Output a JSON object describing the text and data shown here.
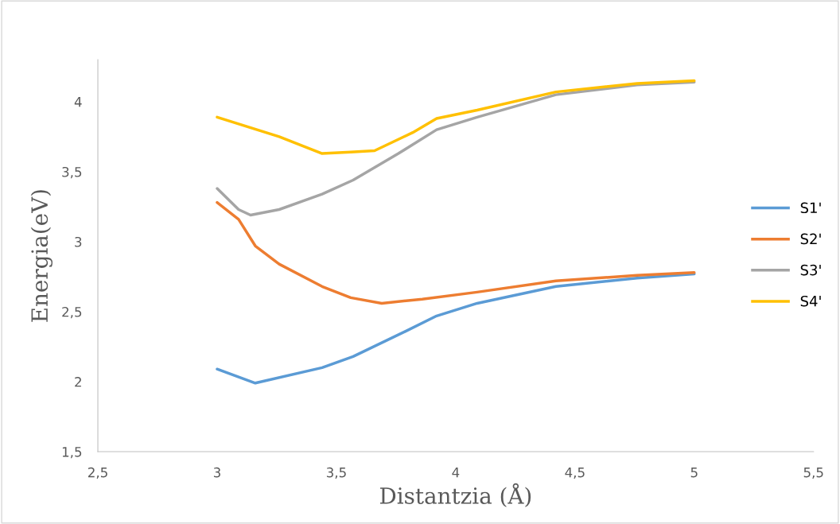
{
  "chart_data": {
    "type": "line",
    "xlabel": "Distantzia (Å)",
    "ylabel": "Energia(eV)",
    "xlim": [
      2.5,
      5.5
    ],
    "ylim": [
      1.5,
      4.3
    ],
    "xticks": [
      {
        "value": 2.5,
        "label": "2,5"
      },
      3,
      {
        "value": 3.5,
        "label": "3,5"
      },
      4,
      {
        "value": 4.5,
        "label": "4,5"
      },
      5,
      {
        "value": 5.5,
        "label": "5,5"
      }
    ],
    "yticks": [
      {
        "value": 1.5,
        "label": "1,5"
      },
      2,
      {
        "value": 2.5,
        "label": "2,5"
      },
      3,
      {
        "value": 3.5,
        "label": "3,5"
      },
      4
    ],
    "grid": false,
    "legend": "right",
    "marker": "none",
    "line_style": "solid",
    "series": [
      {
        "name": "S1'",
        "color": "#5b9bd5",
        "x": [
          3,
          3.16,
          3.44,
          3.57,
          3.79,
          3.92,
          4.09,
          4.42,
          4.76,
          5
        ],
        "values": [
          2.09,
          1.99,
          2.1,
          2.18,
          2.36,
          2.47,
          2.56,
          2.68,
          2.74,
          2.77
        ]
      },
      {
        "name": "S2'",
        "color": "#ed7d31",
        "x": [
          3,
          3.09,
          3.16,
          3.26,
          3.44,
          3.56,
          3.69,
          3.86,
          4.09,
          4.42,
          4.76,
          5
        ],
        "values": [
          3.28,
          3.16,
          2.97,
          2.84,
          2.68,
          2.6,
          2.56,
          2.59,
          2.64,
          2.72,
          2.76,
          2.78
        ]
      },
      {
        "name": "S3'",
        "color": "#a5a5a5",
        "x": [
          3,
          3.09,
          3.14,
          3.26,
          3.44,
          3.57,
          3.76,
          3.92,
          4.09,
          4.42,
          4.76,
          5
        ],
        "values": [
          3.38,
          3.23,
          3.19,
          3.23,
          3.34,
          3.44,
          3.63,
          3.8,
          3.89,
          4.05,
          4.12,
          4.14
        ]
      },
      {
        "name": "S4'",
        "color": "#ffc000",
        "x": [
          3,
          3.26,
          3.44,
          3.56,
          3.66,
          3.82,
          3.92,
          4.09,
          4.42,
          4.76,
          5
        ],
        "values": [
          3.89,
          3.75,
          3.63,
          3.64,
          3.65,
          3.78,
          3.88,
          3.94,
          4.07,
          4.13,
          4.15
        ]
      }
    ]
  }
}
